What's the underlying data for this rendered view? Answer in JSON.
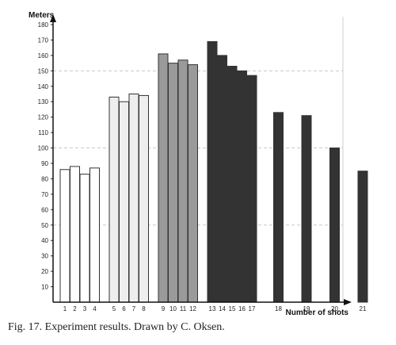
{
  "chart_data": {
    "type": "bar",
    "ylabel": "Meters",
    "xlabel": "Number of shots",
    "ylim": [
      0,
      180
    ],
    "y_ticks": [
      10,
      20,
      30,
      40,
      50,
      60,
      70,
      80,
      90,
      100,
      110,
      120,
      130,
      140,
      150,
      160,
      170,
      180
    ],
    "grid": "dashed horizontal lines at 50, 100, 150",
    "groups": [
      {
        "fill": "#ffffff",
        "categories": [
          "1",
          "2",
          "3",
          "4"
        ],
        "values": [
          86,
          88,
          83,
          87
        ]
      },
      {
        "fill": "#eeeeee",
        "categories": [
          "5",
          "6",
          "7",
          "8"
        ],
        "values": [
          133,
          130,
          135,
          134
        ]
      },
      {
        "fill": "#9a9a9a",
        "categories": [
          "9",
          "10",
          "11",
          "12"
        ],
        "values": [
          161,
          155,
          157,
          154
        ]
      },
      {
        "fill": "#333333",
        "categories": [
          "13",
          "14",
          "15",
          "16",
          "17"
        ],
        "values": [
          169,
          160,
          153,
          150,
          147
        ]
      },
      {
        "fill": "#333333",
        "categories": [
          "18"
        ],
        "values": [
          123
        ]
      },
      {
        "fill": "#333333",
        "categories": [
          "19"
        ],
        "values": [
          121
        ]
      },
      {
        "fill": "#333333",
        "categories": [
          "20"
        ],
        "values": [
          100
        ]
      },
      {
        "fill": "#333333",
        "categories": [
          "21"
        ],
        "values": [
          85
        ]
      }
    ]
  },
  "caption": "Fig. 17. Experiment results. Drawn by C. Oksen."
}
